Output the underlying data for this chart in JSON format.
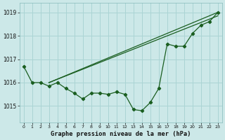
{
  "title": "Graphe pression niveau de la mer (hPa)",
  "background_color": "#cce8e8",
  "grid_color": "#aad4d4",
  "line_color": "#1a5e20",
  "x_ticks": [
    0,
    1,
    2,
    3,
    4,
    5,
    6,
    7,
    8,
    9,
    10,
    11,
    12,
    13,
    14,
    15,
    16,
    17,
    18,
    19,
    20,
    21,
    22,
    23
  ],
  "ylim": [
    1014.3,
    1019.4
  ],
  "yticks": [
    1015,
    1016,
    1017,
    1018,
    1019
  ],
  "main_series": [
    1016.7,
    1016.0,
    1016.0,
    1015.85,
    1016.0,
    1015.75,
    1015.55,
    1015.3,
    1015.55,
    1015.55,
    1015.5,
    1015.6,
    1015.5,
    1014.85,
    1014.8,
    1015.15,
    1015.75,
    1017.65,
    1017.55,
    1017.55,
    1018.1,
    1018.45,
    1018.6,
    1019.0
  ],
  "line2_x": [
    3,
    23
  ],
  "line2_y": [
    1016.0,
    1019.0
  ],
  "line3_x": [
    3,
    23
  ],
  "line3_y": [
    1016.0,
    1018.85
  ],
  "figwidth": 3.2,
  "figheight": 2.0,
  "dpi": 100
}
